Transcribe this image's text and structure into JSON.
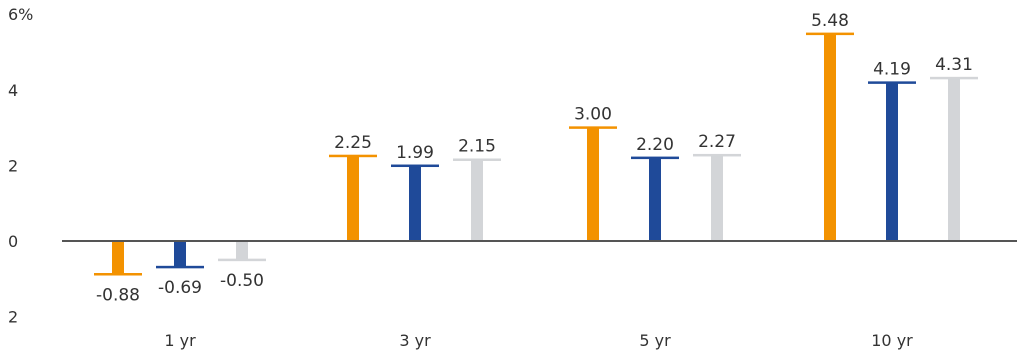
{
  "chart_data": {
    "type": "bar",
    "categories": [
      "1 yr",
      "3 yr",
      "5 yr",
      "10 yr"
    ],
    "series": [
      {
        "values": [
          -0.88,
          2.25,
          3.0,
          5.48
        ],
        "labels": [
          "-0.88",
          "2.25",
          "3.00",
          "5.48"
        ],
        "color": "#f39200"
      },
      {
        "values": [
          -0.69,
          1.99,
          2.2,
          4.19
        ],
        "labels": [
          "-0.69",
          "1.99",
          "2.20",
          "4.19"
        ],
        "color": "#1f4a99"
      },
      {
        "values": [
          -0.5,
          2.15,
          2.27,
          4.31
        ],
        "labels": [
          "-0.50",
          "2.15",
          "2.27",
          "4.31"
        ],
        "color": "#d3d5d8"
      }
    ],
    "y_ticks": [
      {
        "value": 6,
        "label": "6%"
      },
      {
        "value": 4,
        "label": "4"
      },
      {
        "value": 2,
        "label": "2"
      },
      {
        "value": 0,
        "label": "0"
      },
      {
        "value": -2,
        "label": "2"
      }
    ],
    "ylim": [
      -2,
      6
    ],
    "zero_line_color": "#555555",
    "grid": false,
    "legend": "none",
    "title": "",
    "xlabel": "",
    "ylabel": ""
  }
}
